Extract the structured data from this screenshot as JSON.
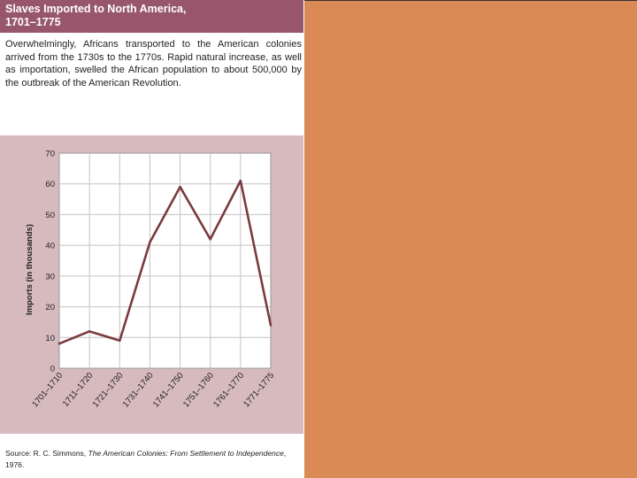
{
  "header": {
    "title_line1": "Slaves Imported to North America,",
    "title_line2": "1701–1775"
  },
  "description": "Overwhelmingly, Africans transported to the American colonies arrived from the 1730s to the 1770s. Rapid natural increase, as well as importation, swelled the African population to about 500,000 by the outbreak of the American Revolution.",
  "source": {
    "prefix": "Source: R. C. Simmons, ",
    "book": "The American Colonies: From Settlement to Independence",
    "suffix": ", 1976."
  },
  "colors": {
    "header": "#97566b",
    "chart_background": "#d7babe",
    "line": "#7a3b3f",
    "right_panel": "#d98a55"
  },
  "chart_data": {
    "type": "line",
    "ylabel": "Imports (in thousands)",
    "xlabel": "",
    "ylim": [
      0,
      70
    ],
    "yticks": [
      0,
      10,
      20,
      30,
      40,
      50,
      60,
      70
    ],
    "grid": true,
    "categories": [
      "1701–1710",
      "1711–1720",
      "1721–1730",
      "1731–1740",
      "1741–1750",
      "1751–1760",
      "1761–1770",
      "1771–1775"
    ],
    "series": [
      {
        "values": [
          8,
          12,
          9,
          41,
          59,
          42,
          61,
          14
        ]
      }
    ]
  }
}
